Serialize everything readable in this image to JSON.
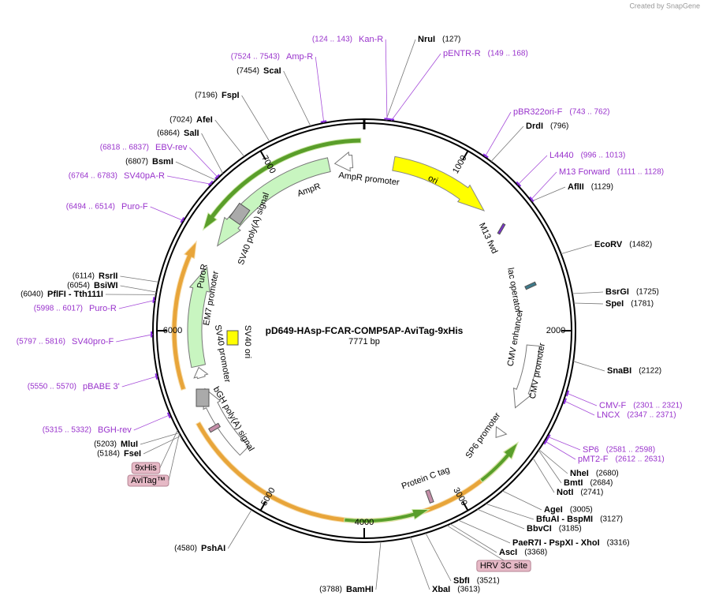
{
  "credit": "Created by SnapGene",
  "title": "pD649-HAsp-FCAR-COMP5AP-AviTag-9xHis",
  "length": "7771 bp",
  "sites": [
    {
      "name": "NruI",
      "position": "(127)"
    },
    {
      "name": "DrdI",
      "position": "(796)"
    },
    {
      "name": "AflII",
      "position": "(1129)"
    },
    {
      "name": "EcoRV",
      "position": "(1482)"
    },
    {
      "name": "BsrGI",
      "position": "(1725)"
    },
    {
      "name": "SpeI",
      "position": "(1781)"
    },
    {
      "name": "SnaBI",
      "position": "(2122)"
    },
    {
      "name": "NheI",
      "position": "(2680)"
    },
    {
      "name": "BmtI",
      "position": "(2684)"
    },
    {
      "name": "NotI",
      "position": "(2741)"
    },
    {
      "name": "AgeI",
      "position": "(3005)"
    },
    {
      "name": "BfuAI - BspMI",
      "position": "(3127)"
    },
    {
      "name": "BbvCI",
      "position": "(3185)"
    },
    {
      "name": "PaeR7I - PspXI - XhoI",
      "position": "(3316)"
    },
    {
      "name": "AscI",
      "position": "(3368)"
    },
    {
      "name": "SbfI",
      "position": "(3521)"
    },
    {
      "name": "XbaI",
      "position": "(3613)"
    },
    {
      "name": "BamHI",
      "position": "(3788)"
    },
    {
      "name": "PshAI",
      "position": "(4580)"
    },
    {
      "name": "FseI",
      "position": "(5184)"
    },
    {
      "name": "MluI",
      "position": "(5203)"
    },
    {
      "name": "PflFI - Tth111I",
      "position": "(6040)"
    },
    {
      "name": "BsiWI",
      "position": "(6054)"
    },
    {
      "name": "RsrII",
      "position": "(6114)"
    },
    {
      "name": "BsmI",
      "position": "(6807)"
    },
    {
      "name": "SalI",
      "position": "(6864)"
    },
    {
      "name": "AfeI",
      "position": "(7024)"
    },
    {
      "name": "FspI",
      "position": "(7196)"
    },
    {
      "name": "ScaI",
      "position": "(7454)"
    }
  ],
  "primers": [
    {
      "name": "pENTR-R",
      "range": "(149 .. 168)"
    },
    {
      "name": "pBR322ori-F",
      "range": "(743 .. 762)"
    },
    {
      "name": "L4440",
      "range": "(996 .. 1013)"
    },
    {
      "name": "M13 Forward",
      "range": "(1111 .. 1128)"
    },
    {
      "name": "CMV-F",
      "range": "(2301 .. 2321)"
    },
    {
      "name": "LNCX",
      "range": "(2347 .. 2371)"
    },
    {
      "name": "SP6",
      "range": "(2581 .. 2598)"
    },
    {
      "name": "pMT2-F",
      "range": "(2612 .. 2631)"
    },
    {
      "name": "Kan-R",
      "range": "(124 .. 143)"
    },
    {
      "name": "Amp-R",
      "range": "(7524 .. 7543)"
    },
    {
      "name": "EBV-rev",
      "range": "(6818 .. 6837)"
    },
    {
      "name": "SV40pA-R",
      "range": "(6764 .. 6783)"
    },
    {
      "name": "Puro-F",
      "range": "(6494 .. 6514)"
    },
    {
      "name": "Puro-R",
      "range": "(5998 .. 6017)"
    },
    {
      "name": "SV40pro-F",
      "range": "(5797 .. 5816)"
    },
    {
      "name": "pBABE 3'",
      "range": "(5550 .. 5570)"
    },
    {
      "name": "BGH-rev",
      "range": "(5315 .. 5332)"
    }
  ],
  "tags": [
    "9xHis",
    "AviTag™",
    "HRV 3C site"
  ],
  "features": [
    "AmpR promoter",
    "AmpR",
    "ori",
    "M13 fwd",
    "lac operator",
    "CMV enhancer",
    "CMV promoter",
    "SP6 promoter",
    "Protein C tag",
    "SV40 poly(A) signal",
    "PuroR",
    "EM7 promoter",
    "SV40 promoter",
    "SV40 ori",
    "bGH poly(A) signal"
  ],
  "ruler": [
    "1000",
    "2000",
    "3000",
    "4000",
    "5000",
    "6000",
    "7000"
  ]
}
